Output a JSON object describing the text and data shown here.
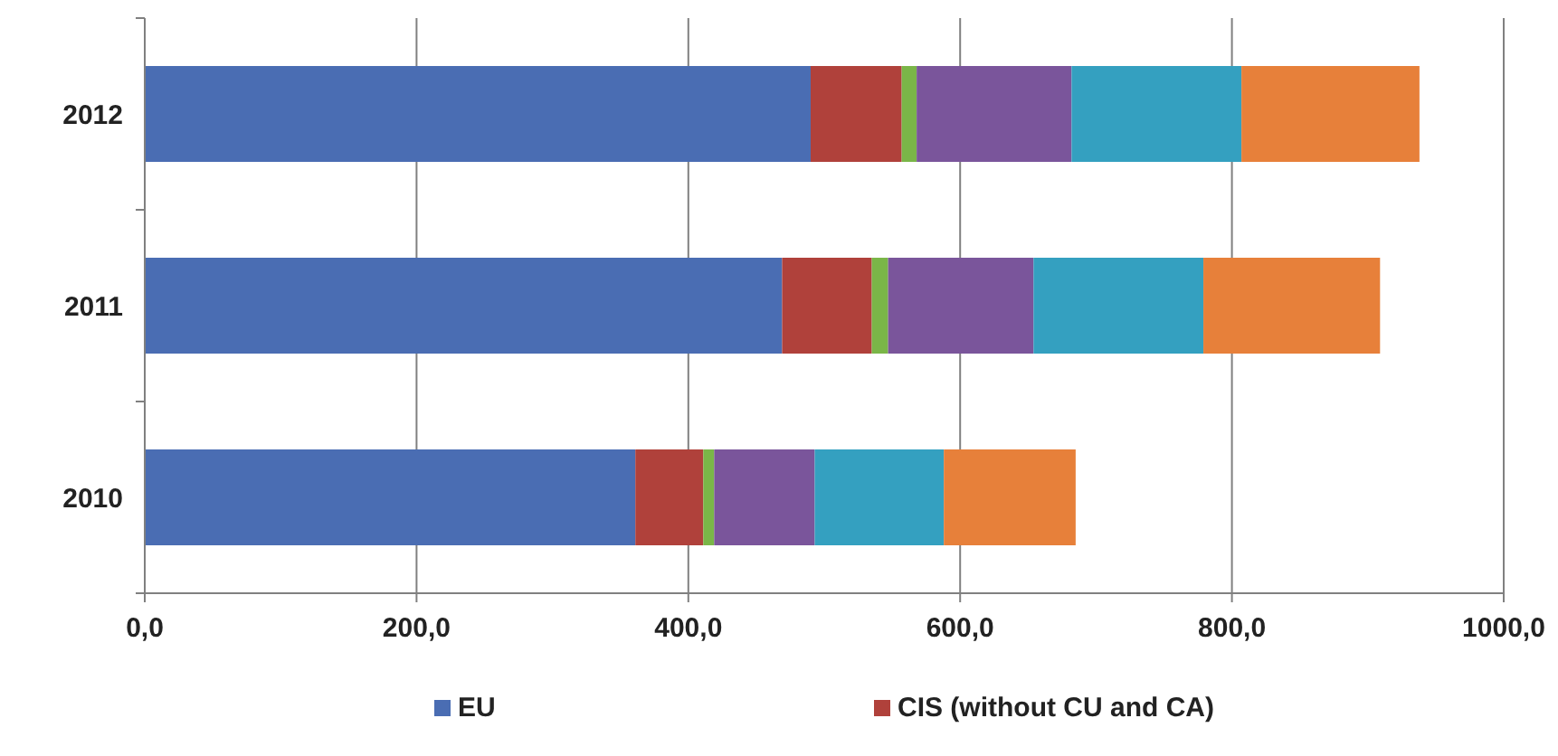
{
  "chart_data": {
    "type": "bar",
    "orientation": "horizontal",
    "stacked": true,
    "categories": [
      "2012",
      "2011",
      "2010"
    ],
    "series": [
      {
        "name": "EU",
        "color": "#4a6db3",
        "values": [
          490,
          469,
          361
        ]
      },
      {
        "name": "CIS (without CU and CA)",
        "color": "#b0413b",
        "values": [
          67,
          66,
          50
        ]
      },
      {
        "color": "#7ab648",
        "values": [
          11,
          12,
          8
        ]
      },
      {
        "color": "#7a559b",
        "values": [
          114,
          107,
          74
        ]
      },
      {
        "color": "#34a0c0",
        "values": [
          125,
          125,
          95
        ]
      },
      {
        "color": "#e7803a",
        "values": [
          131,
          130,
          97
        ]
      }
    ],
    "xlim": [
      0,
      1000
    ],
    "xticks": [
      {
        "value": 0,
        "label": "0,0"
      },
      {
        "value": 200,
        "label": "200,0"
      },
      {
        "value": 400,
        "label": "400,0"
      },
      {
        "value": 600,
        "label": "600,0"
      },
      {
        "value": 800,
        "label": "800,0"
      },
      {
        "value": 1000,
        "label": "1000,0"
      }
    ],
    "grid": "x",
    "legend": "bottom"
  }
}
